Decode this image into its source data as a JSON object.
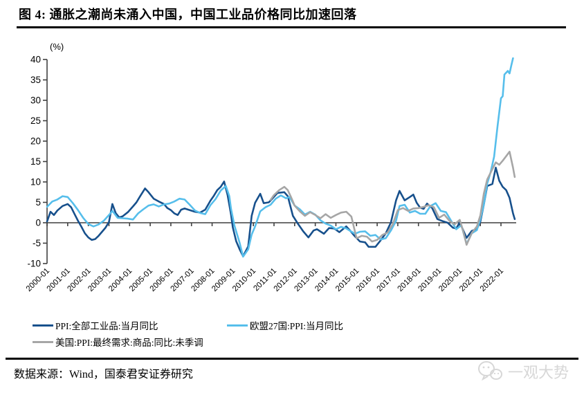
{
  "title": "图 4:  通胀之潮尚未涌入中国，中国工业品价格同比加速回落",
  "source": "数据来源：Wind，国泰君安证券研究",
  "watermark": "一观大势",
  "colors": {
    "china_ppi": "#17508C",
    "eu_ppi": "#56BEEB",
    "us_ppi": "#A6A6A6",
    "axis": "#3F3F3F",
    "watermark": "#D7D7D7"
  },
  "chart_data": {
    "type": "line",
    "unit_label": "(%)",
    "ylim": [
      -10,
      40
    ],
    "y_ticks": [
      40,
      35,
      30,
      25,
      20,
      15,
      10,
      5,
      0,
      -5,
      -10
    ],
    "x_tick_labels": [
      "2000-01",
      "2001-01",
      "2002-01",
      "2003-01",
      "2004-01",
      "2005-01",
      "2006-01",
      "2007-01",
      "2008-01",
      "2009-01",
      "2010-01",
      "2011-01",
      "2012-01",
      "2013-01",
      "2014-01",
      "2015-01",
      "2016-01",
      "2017-01",
      "2018-01",
      "2019-01",
      "2020-01",
      "2021-01",
      "2022-01"
    ],
    "x_unit": "months since 2000-01",
    "grid": false,
    "legend_position": "bottom",
    "series": [
      {
        "name": "PPI:全部工业品:当月同比",
        "color": "#17508C",
        "points": [
          [
            0,
            0.3
          ],
          [
            2,
            2.7
          ],
          [
            4,
            1.9
          ],
          [
            6,
            3.0
          ],
          [
            9,
            4.1
          ],
          [
            12,
            4.6
          ],
          [
            14,
            3.8
          ],
          [
            16,
            2.1
          ],
          [
            18,
            0.5
          ],
          [
            20,
            -1.0
          ],
          [
            22,
            -2.6
          ],
          [
            24,
            -3.6
          ],
          [
            26,
            -4.2
          ],
          [
            28,
            -4.0
          ],
          [
            30,
            -3.2
          ],
          [
            32,
            -2.2
          ],
          [
            34,
            -1.2
          ],
          [
            36,
            0.2
          ],
          [
            38,
            4.6
          ],
          [
            40,
            2.3
          ],
          [
            42,
            1.3
          ],
          [
            44,
            1.6
          ],
          [
            47,
            2.6
          ],
          [
            50,
            4.0
          ],
          [
            52,
            5.0
          ],
          [
            54,
            6.4
          ],
          [
            57,
            8.4
          ],
          [
            59,
            7.5
          ],
          [
            62,
            5.9
          ],
          [
            65,
            5.2
          ],
          [
            68,
            4.6
          ],
          [
            70,
            3.6
          ],
          [
            72,
            3.1
          ],
          [
            74,
            2.3
          ],
          [
            76,
            1.9
          ],
          [
            78,
            3.2
          ],
          [
            80,
            3.5
          ],
          [
            83,
            3.1
          ],
          [
            86,
            2.7
          ],
          [
            89,
            2.5
          ],
          [
            92,
            3.2
          ],
          [
            95,
            5.4
          ],
          [
            97,
            6.6
          ],
          [
            99,
            8.0
          ],
          [
            101,
            8.8
          ],
          [
            103,
            10.1
          ],
          [
            105,
            6.8
          ],
          [
            107,
            2.0
          ],
          [
            108,
            -1.1
          ],
          [
            110,
            -4.5
          ],
          [
            112,
            -6.5
          ],
          [
            114,
            -8.2
          ],
          [
            117,
            -5.8
          ],
          [
            119,
            1.7
          ],
          [
            121,
            4.9
          ],
          [
            124,
            7.1
          ],
          [
            126,
            4.8
          ],
          [
            129,
            5.0
          ],
          [
            131,
            5.9
          ],
          [
            134,
            7.3
          ],
          [
            138,
            7.5
          ],
          [
            140,
            6.5
          ],
          [
            143,
            1.7
          ],
          [
            146,
            -0.3
          ],
          [
            149,
            -2.1
          ],
          [
            152,
            -3.6
          ],
          [
            155,
            -1.9
          ],
          [
            157,
            -1.6
          ],
          [
            161,
            -2.7
          ],
          [
            164,
            -1.3
          ],
          [
            167,
            -1.4
          ],
          [
            170,
            -2.3
          ],
          [
            174,
            -0.9
          ],
          [
            176,
            -1.8
          ],
          [
            179,
            -3.3
          ],
          [
            182,
            -4.6
          ],
          [
            185,
            -4.8
          ],
          [
            187,
            -5.9
          ],
          [
            191,
            -5.9
          ],
          [
            194,
            -4.3
          ],
          [
            197,
            -2.6
          ],
          [
            200,
            0.1
          ],
          [
            203,
            5.5
          ],
          [
            205,
            7.8
          ],
          [
            208,
            5.5
          ],
          [
            211,
            6.3
          ],
          [
            213,
            6.9
          ],
          [
            215,
            4.9
          ],
          [
            217,
            3.7
          ],
          [
            219,
            3.4
          ],
          [
            221,
            4.7
          ],
          [
            224,
            3.6
          ],
          [
            227,
            0.9
          ],
          [
            230,
            0.4
          ],
          [
            233,
            0.0
          ],
          [
            236,
            -1.2
          ],
          [
            238,
            -1.4
          ],
          [
            240,
            0.1
          ],
          [
            244,
            -3.7
          ],
          [
            247,
            -2.0
          ],
          [
            250,
            -1.5
          ],
          [
            252,
            0.3
          ],
          [
            254,
            4.4
          ],
          [
            256,
            9.0
          ],
          [
            259,
            9.5
          ],
          [
            261,
            13.5
          ],
          [
            263,
            10.3
          ],
          [
            265,
            8.8
          ],
          [
            267,
            8.0
          ],
          [
            269,
            6.1
          ],
          [
            270,
            4.2
          ],
          [
            271,
            2.3
          ],
          [
            272,
            0.9
          ]
        ]
      },
      {
        "name": "欧盟27国:PPI:当月同比",
        "color": "#56BEEB",
        "points": [
          [
            0,
            3.9
          ],
          [
            3,
            5.2
          ],
          [
            6,
            5.7
          ],
          [
            9,
            6.5
          ],
          [
            12,
            6.3
          ],
          [
            15,
            4.8
          ],
          [
            18,
            3.1
          ],
          [
            21,
            1.2
          ],
          [
            24,
            -0.3
          ],
          [
            27,
            -0.9
          ],
          [
            30,
            -0.4
          ],
          [
            33,
            0.5
          ],
          [
            36,
            1.9
          ],
          [
            38,
            2.9
          ],
          [
            41,
            1.2
          ],
          [
            44,
            1.1
          ],
          [
            47,
            1.0
          ],
          [
            50,
            0.8
          ],
          [
            53,
            2.3
          ],
          [
            56,
            3.3
          ],
          [
            59,
            4.2
          ],
          [
            62,
            4.5
          ],
          [
            65,
            4.0
          ],
          [
            68,
            4.5
          ],
          [
            71,
            4.7
          ],
          [
            74,
            5.2
          ],
          [
            77,
            5.9
          ],
          [
            80,
            5.7
          ],
          [
            83,
            4.4
          ],
          [
            86,
            3.0
          ],
          [
            89,
            2.4
          ],
          [
            92,
            2.1
          ],
          [
            95,
            4.3
          ],
          [
            98,
            5.8
          ],
          [
            101,
            7.9
          ],
          [
            104,
            9.0
          ],
          [
            106,
            6.5
          ],
          [
            107,
            3.4
          ],
          [
            109,
            -0.7
          ],
          [
            112,
            -4.9
          ],
          [
            114,
            -8.3
          ],
          [
            117,
            -6.5
          ],
          [
            119,
            -2.9
          ],
          [
            121,
            -0.9
          ],
          [
            124,
            2.8
          ],
          [
            127,
            3.8
          ],
          [
            130,
            4.4
          ],
          [
            133,
            5.9
          ],
          [
            136,
            6.7
          ],
          [
            139,
            6.0
          ],
          [
            141,
            6.3
          ],
          [
            144,
            4.2
          ],
          [
            147,
            3.3
          ],
          [
            150,
            2.0
          ],
          [
            153,
            2.7
          ],
          [
            156,
            2.0
          ],
          [
            159,
            0.6
          ],
          [
            162,
            -0.2
          ],
          [
            165,
            -0.7
          ],
          [
            168,
            -1.6
          ],
          [
            171,
            -1.0
          ],
          [
            174,
            -1.4
          ],
          [
            179,
            -2.7
          ],
          [
            182,
            -2.2
          ],
          [
            185,
            -2.1
          ],
          [
            188,
            -3.2
          ],
          [
            191,
            -3.0
          ],
          [
            194,
            -4.1
          ],
          [
            197,
            -3.8
          ],
          [
            200,
            -1.9
          ],
          [
            203,
            0.5
          ],
          [
            205,
            4.1
          ],
          [
            208,
            4.4
          ],
          [
            211,
            2.5
          ],
          [
            214,
            2.9
          ],
          [
            217,
            2.2
          ],
          [
            220,
            2.2
          ],
          [
            223,
            4.1
          ],
          [
            226,
            4.8
          ],
          [
            229,
            2.9
          ],
          [
            232,
            2.6
          ],
          [
            235,
            0.5
          ],
          [
            238,
            -1.6
          ],
          [
            241,
            -0.6
          ],
          [
            244,
            -5.2
          ],
          [
            247,
            -2.6
          ],
          [
            250,
            -1.8
          ],
          [
            252,
            0.9
          ],
          [
            254,
            4.4
          ],
          [
            256,
            9.6
          ],
          [
            258,
            12.4
          ],
          [
            260,
            16.2
          ],
          [
            262,
            23.6
          ],
          [
            264,
            30.5
          ],
          [
            265,
            31.0
          ],
          [
            266,
            36.3
          ],
          [
            268,
            37.2
          ],
          [
            269,
            36.6
          ],
          [
            270,
            38.5
          ],
          [
            271,
            40.3
          ]
        ]
      },
      {
        "name": "美国:PPI:最终需求:商品:同比:未季调",
        "color": "#A6A6A6",
        "points": [
          [
            130,
            5.6
          ],
          [
            132,
            6.8
          ],
          [
            135,
            8.0
          ],
          [
            138,
            8.8
          ],
          [
            140,
            8.0
          ],
          [
            142,
            6.2
          ],
          [
            144,
            4.2
          ],
          [
            147,
            2.8
          ],
          [
            150,
            1.7
          ],
          [
            153,
            2.6
          ],
          [
            156,
            1.9
          ],
          [
            159,
            1.1
          ],
          [
            162,
            2.1
          ],
          [
            165,
            1.2
          ],
          [
            168,
            1.9
          ],
          [
            171,
            2.5
          ],
          [
            174,
            2.7
          ],
          [
            177,
            1.5
          ],
          [
            180,
            -3.8
          ],
          [
            183,
            -3.2
          ],
          [
            186,
            -3.4
          ],
          [
            189,
            -4.6
          ],
          [
            192,
            -4.2
          ],
          [
            195,
            -3.0
          ],
          [
            198,
            -2.4
          ],
          [
            201,
            -0.4
          ],
          [
            204,
            3.1
          ],
          [
            207,
            3.6
          ],
          [
            210,
            2.9
          ],
          [
            213,
            3.5
          ],
          [
            216,
            3.6
          ],
          [
            219,
            3.9
          ],
          [
            222,
            4.3
          ],
          [
            225,
            3.8
          ],
          [
            228,
            1.2
          ],
          [
            231,
            2.0
          ],
          [
            234,
            0.5
          ],
          [
            237,
            -0.4
          ],
          [
            240,
            0.7
          ],
          [
            242,
            -2.0
          ],
          [
            244,
            -5.4
          ],
          [
            247,
            -2.5
          ],
          [
            250,
            -0.9
          ],
          [
            252,
            1.8
          ],
          [
            254,
            7.1
          ],
          [
            256,
            10.6
          ],
          [
            258,
            12.3
          ],
          [
            261,
            14.8
          ],
          [
            263,
            14.2
          ],
          [
            265,
            15.2
          ],
          [
            267,
            16.3
          ],
          [
            269,
            17.4
          ],
          [
            271,
            13.5
          ],
          [
            272,
            11.2
          ]
        ]
      }
    ]
  }
}
